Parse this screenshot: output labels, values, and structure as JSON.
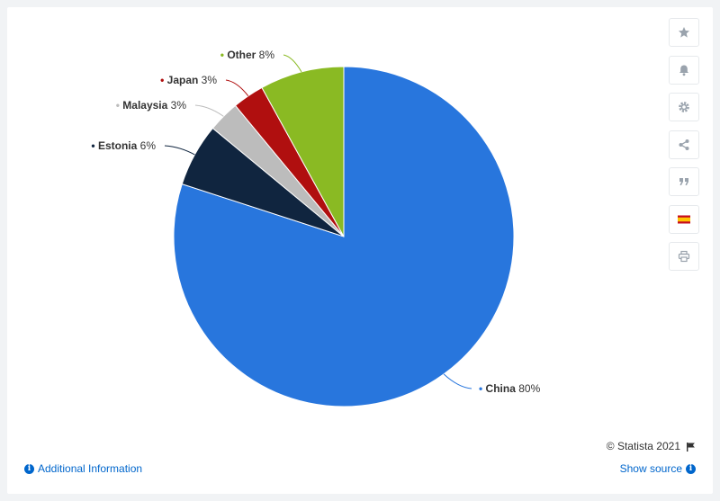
{
  "chart_data": {
    "type": "pie",
    "slices": [
      {
        "label": "China",
        "value": 80,
        "pct_text": "80%",
        "color": "#2876dd"
      },
      {
        "label": "Estonia",
        "value": 6,
        "pct_text": "6%",
        "color": "#10253f"
      },
      {
        "label": "Malaysia",
        "value": 3,
        "pct_text": "3%",
        "color": "#bcbcbc"
      },
      {
        "label": "Japan",
        "value": 3,
        "pct_text": "3%",
        "color": "#b00f0f"
      },
      {
        "label": "Other",
        "value": 8,
        "pct_text": "8%",
        "color": "#8aba23"
      }
    ]
  },
  "footer": {
    "copyright": "© Statista 2021",
    "additional_info": "Additional Information",
    "show_source": "Show source"
  },
  "toolbar": {
    "icons": [
      "star-icon",
      "bell-icon",
      "gear-icon",
      "share-icon",
      "quote-icon",
      "flag-spain-icon",
      "print-icon"
    ]
  }
}
